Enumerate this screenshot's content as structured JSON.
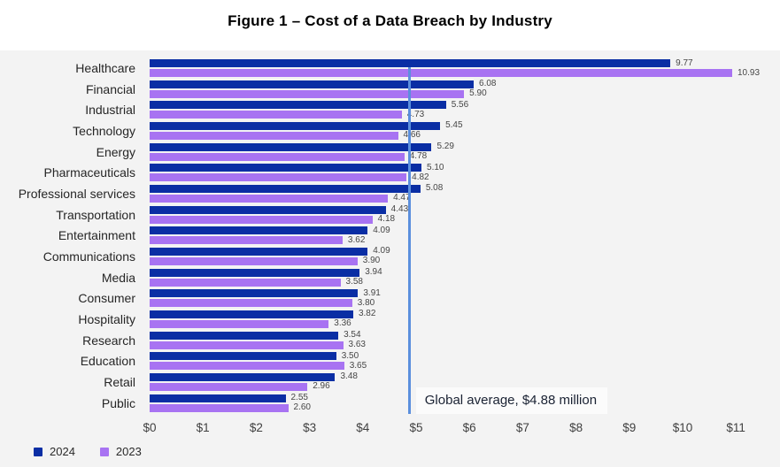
{
  "title": "Figure 1 – Cost of a Data Breach by Industry",
  "chart_data": {
    "type": "bar",
    "orientation": "horizontal",
    "unit": "USD millions",
    "title": "Figure 1 – Cost of a Data Breach by Industry",
    "categories": [
      "Healthcare",
      "Financial",
      "Industrial",
      "Technology",
      "Energy",
      "Pharmaceuticals",
      "Professional services",
      "Transportation",
      "Entertainment",
      "Communications",
      "Media",
      "Consumer",
      "Hospitality",
      "Research",
      "Education",
      "Retail",
      "Public"
    ],
    "series": [
      {
        "name": "2024",
        "color": "#0a2ea4",
        "values": [
          9.77,
          6.08,
          5.56,
          5.45,
          5.29,
          5.1,
          5.08,
          4.43,
          4.09,
          4.09,
          3.94,
          3.91,
          3.82,
          3.54,
          3.5,
          3.48,
          2.55
        ]
      },
      {
        "name": "2023",
        "color": "#a873f2",
        "values": [
          10.93,
          5.9,
          4.73,
          4.66,
          4.78,
          4.82,
          4.47,
          4.18,
          3.62,
          3.9,
          3.58,
          3.8,
          3.36,
          3.63,
          3.65,
          2.96,
          2.6
        ]
      }
    ],
    "x_ticks": [
      "$0",
      "$1",
      "$2",
      "$3",
      "$4",
      "$5",
      "$6",
      "$7",
      "$8",
      "$9",
      "$10",
      "$11"
    ],
    "xlim": [
      0,
      11
    ],
    "value_labels": true,
    "grid": false,
    "background": "#f3f3f3",
    "average_line": {
      "value": 4.88,
      "label": "Global average, $4.88 million",
      "color": "#5b8fdd"
    },
    "legend_position": "bottom-left"
  },
  "legend": {
    "items": [
      {
        "label": "2024",
        "color": "#0a2ea4"
      },
      {
        "label": "2023",
        "color": "#a873f2"
      }
    ]
  }
}
